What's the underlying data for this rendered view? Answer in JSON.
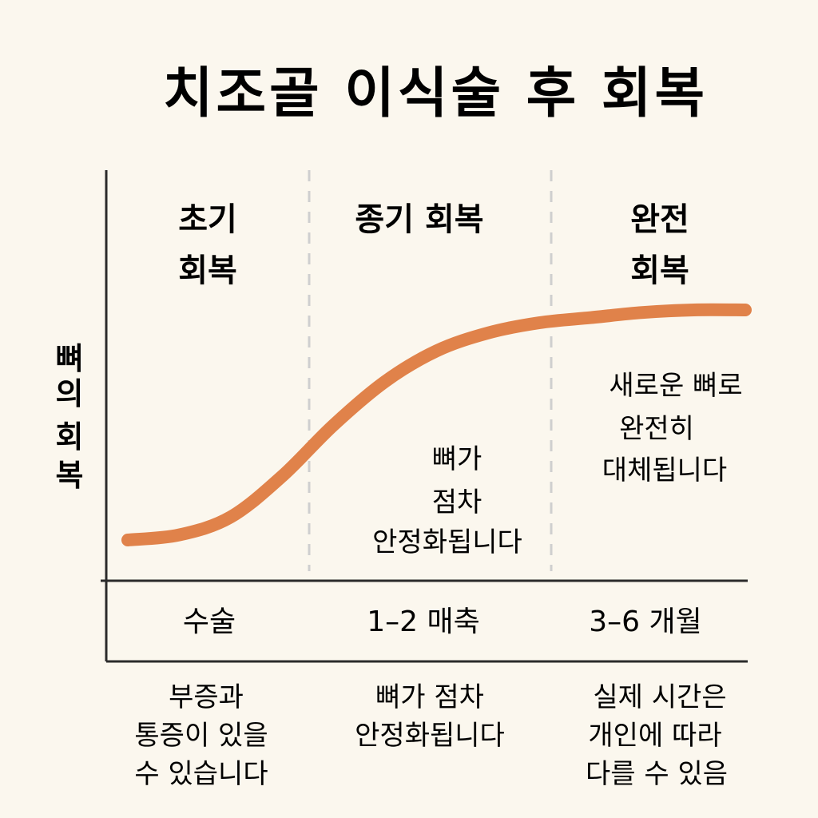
{
  "chart_data": {
    "type": "line",
    "title": "치조골 이식술 후 회복",
    "ylabel": "뼈의 회복",
    "x": [
      0,
      0.5,
      1,
      1.5,
      2,
      2.5,
      3,
      3.5,
      4,
      4.5,
      5,
      5.5,
      6
    ],
    "values": [
      0.05,
      0.07,
      0.14,
      0.3,
      0.5,
      0.67,
      0.79,
      0.86,
      0.9,
      0.92,
      0.94,
      0.95,
      0.95
    ],
    "phases": [
      {
        "label": [
          "초기",
          "회복"
        ],
        "annotation": []
      },
      {
        "label": [
          "종기 회복"
        ],
        "annotation": [
          "뼈가",
          "점차",
          "안정화됩니다"
        ]
      },
      {
        "label": [
          "완전",
          "회복"
        ],
        "annotation": [
          "새로운 뼈로",
          "완전히",
          "대체됩니다"
        ]
      }
    ],
    "timeline": [
      "수술",
      "1–2 매축",
      "3–6 개월"
    ],
    "notes": [
      [
        "부증과",
        "통증이 있을",
        "수 있습니다"
      ],
      [
        "뼈가 점차",
        "안정화됩니다"
      ],
      [
        "실제 시간은",
        "개인에 따라",
        "다를 수 있음"
      ]
    ],
    "colors": {
      "curve": "#e0824a",
      "axis": "#2b2b2b",
      "divider": "#cfcfcf",
      "background": "#fbf7ee"
    }
  }
}
